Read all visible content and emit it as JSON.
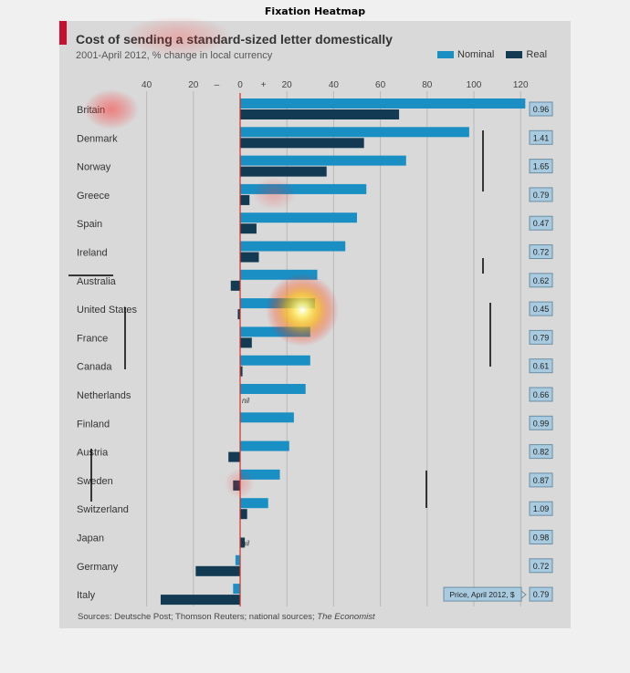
{
  "figure_title": "Fixation Heatmap",
  "colors": {
    "nominal": "#1a8fc4",
    "real": "#123a52",
    "zero_line": "#d62d20",
    "price_box": "#a9cbe0"
  },
  "chart_data": {
    "type": "bar",
    "title": "Cost of sending a standard-sized letter domestically",
    "subtitle": "2001-April 2012, % change in local currency",
    "xlim": [
      -40,
      120
    ],
    "xticks": [
      "40",
      "20",
      "–",
      "0",
      "+",
      "20",
      "40",
      "60",
      "80",
      "100",
      "120"
    ],
    "grid": true,
    "legend_position": "top-right",
    "categories": [
      "Britain",
      "Denmark",
      "Norway",
      "Greece",
      "Spain",
      "Ireland",
      "Australia",
      "United States",
      "France",
      "Canada",
      "Netherlands",
      "Finland",
      "Austria",
      "Sweden",
      "Switzerland",
      "Japan",
      "Germany",
      "Italy"
    ],
    "series": [
      {
        "name": "Nominal",
        "values": [
          122,
          98,
          71,
          54,
          50,
          45,
          33,
          32,
          30,
          30,
          28,
          23,
          21,
          17,
          12,
          0,
          -2,
          -3
        ]
      },
      {
        "name": "Real",
        "values": [
          68,
          53,
          37,
          4,
          7,
          8,
          -4,
          -1,
          5,
          1,
          0,
          0,
          -5,
          -3,
          3,
          2,
          -19,
          -34
        ]
      }
    ],
    "annotations": {
      "nil_label": "nil",
      "nil_rows": [
        "Netherlands",
        "Japan"
      ]
    },
    "price_label": "Price, April 2012, $",
    "prices": [
      "0.96",
      "1.41",
      "1.65",
      "0.79",
      "0.47",
      "0.72",
      "0.62",
      "0.45",
      "0.79",
      "0.61",
      "0.66",
      "0.99",
      "0.82",
      "0.87",
      "1.09",
      "0.98",
      "0.72",
      "0.79"
    ],
    "source_prefix": "Sources: Deutsche Post; Thomson Reuters; national sources;",
    "source_publication": "The Economist"
  }
}
